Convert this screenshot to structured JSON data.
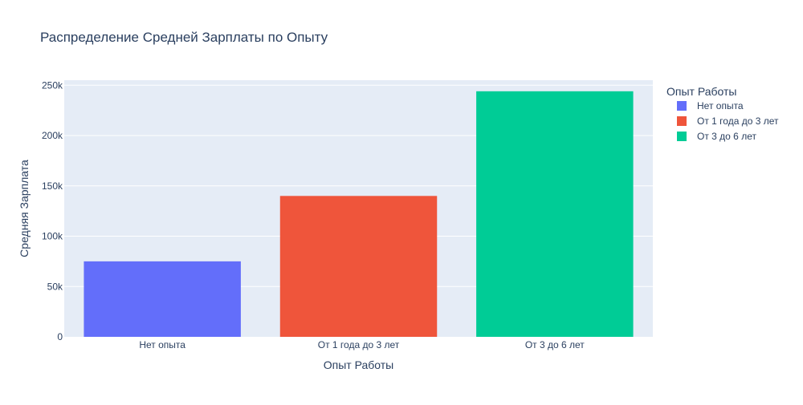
{
  "chart_data": {
    "type": "bar",
    "title": "Распределение Средней Зарплаты по Опыту",
    "xlabel": "Опыт Работы",
    "ylabel": "Средняя Зарплата",
    "categories": [
      "Нет опыта",
      "От 1 года до 3 лет",
      "От 3 до 6 лет"
    ],
    "values": [
      75000,
      140000,
      244000
    ],
    "colors": [
      "#636efa",
      "#ef553b",
      "#00cc96"
    ],
    "ylim": [
      0,
      255000
    ],
    "yticks": [
      0,
      50000,
      100000,
      150000,
      200000,
      250000
    ],
    "ytick_labels": [
      "0",
      "50k",
      "100k",
      "150k",
      "200k",
      "250k"
    ],
    "grid": true,
    "legend": {
      "title": "Опыт Работы",
      "placement": "top-right",
      "entries": [
        "Нет опыта",
        "От 1 года до 3 лет",
        "От 3 до 6 лет"
      ]
    }
  }
}
